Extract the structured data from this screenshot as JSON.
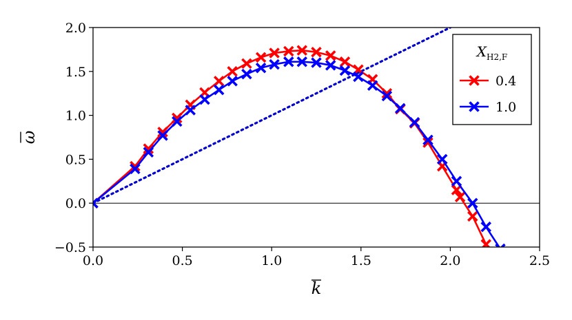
{
  "chart_data": {
    "type": "line",
    "xlabel": "k",
    "ylabel": "ω",
    "xlim": [
      0.0,
      2.5
    ],
    "ylim": [
      -0.5,
      2.0
    ],
    "x_ticks": [
      "0.0",
      "0.5",
      "1.0",
      "1.5",
      "2.0",
      "2.5"
    ],
    "y_ticks": [
      "−0.5",
      "0.0",
      "0.5",
      "1.0",
      "1.5",
      "2.0"
    ],
    "grid": false,
    "legend": {
      "placement": "top-right",
      "title_main": "X",
      "title_sub": "H2,F"
    },
    "series": [
      {
        "name": "0.4",
        "color": "#ff0000",
        "marker": "x",
        "x": [
          0.0,
          0.235,
          0.31,
          0.39,
          0.47,
          0.545,
          0.625,
          0.705,
          0.78,
          0.86,
          0.94,
          1.015,
          1.095,
          1.17,
          1.25,
          1.33,
          1.41,
          1.485,
          1.565,
          1.645,
          1.72,
          1.8,
          1.875,
          1.955,
          2.035,
          2.055,
          2.125,
          2.2
        ],
        "y": [
          0.0,
          0.42,
          0.62,
          0.81,
          0.97,
          1.12,
          1.26,
          1.39,
          1.5,
          1.59,
          1.66,
          1.71,
          1.73,
          1.74,
          1.72,
          1.68,
          1.61,
          1.52,
          1.41,
          1.25,
          1.07,
          0.91,
          0.69,
          0.42,
          0.15,
          0.07,
          -0.15,
          -0.47
        ]
      },
      {
        "name": "1.0",
        "color": "#0000ff",
        "marker": "x",
        "x": [
          0.0,
          0.235,
          0.31,
          0.39,
          0.47,
          0.545,
          0.625,
          0.705,
          0.78,
          0.86,
          0.94,
          1.015,
          1.095,
          1.17,
          1.25,
          1.33,
          1.41,
          1.485,
          1.565,
          1.645,
          1.72,
          1.8,
          1.875,
          1.955,
          2.035,
          2.125,
          2.2,
          2.28
        ],
        "y": [
          0.0,
          0.39,
          0.58,
          0.77,
          0.93,
          1.06,
          1.18,
          1.29,
          1.39,
          1.47,
          1.54,
          1.58,
          1.61,
          1.61,
          1.6,
          1.57,
          1.51,
          1.44,
          1.34,
          1.22,
          1.08,
          0.92,
          0.72,
          0.5,
          0.25,
          0.0,
          -0.27,
          -0.52
        ]
      }
    ],
    "reference_line": {
      "style": "dotted",
      "color": "#0000cc",
      "x": [
        0.0,
        2.0
      ],
      "y": [
        0.0,
        2.0
      ]
    },
    "zero_line": {
      "y": 0.0,
      "color": "#000000"
    }
  }
}
